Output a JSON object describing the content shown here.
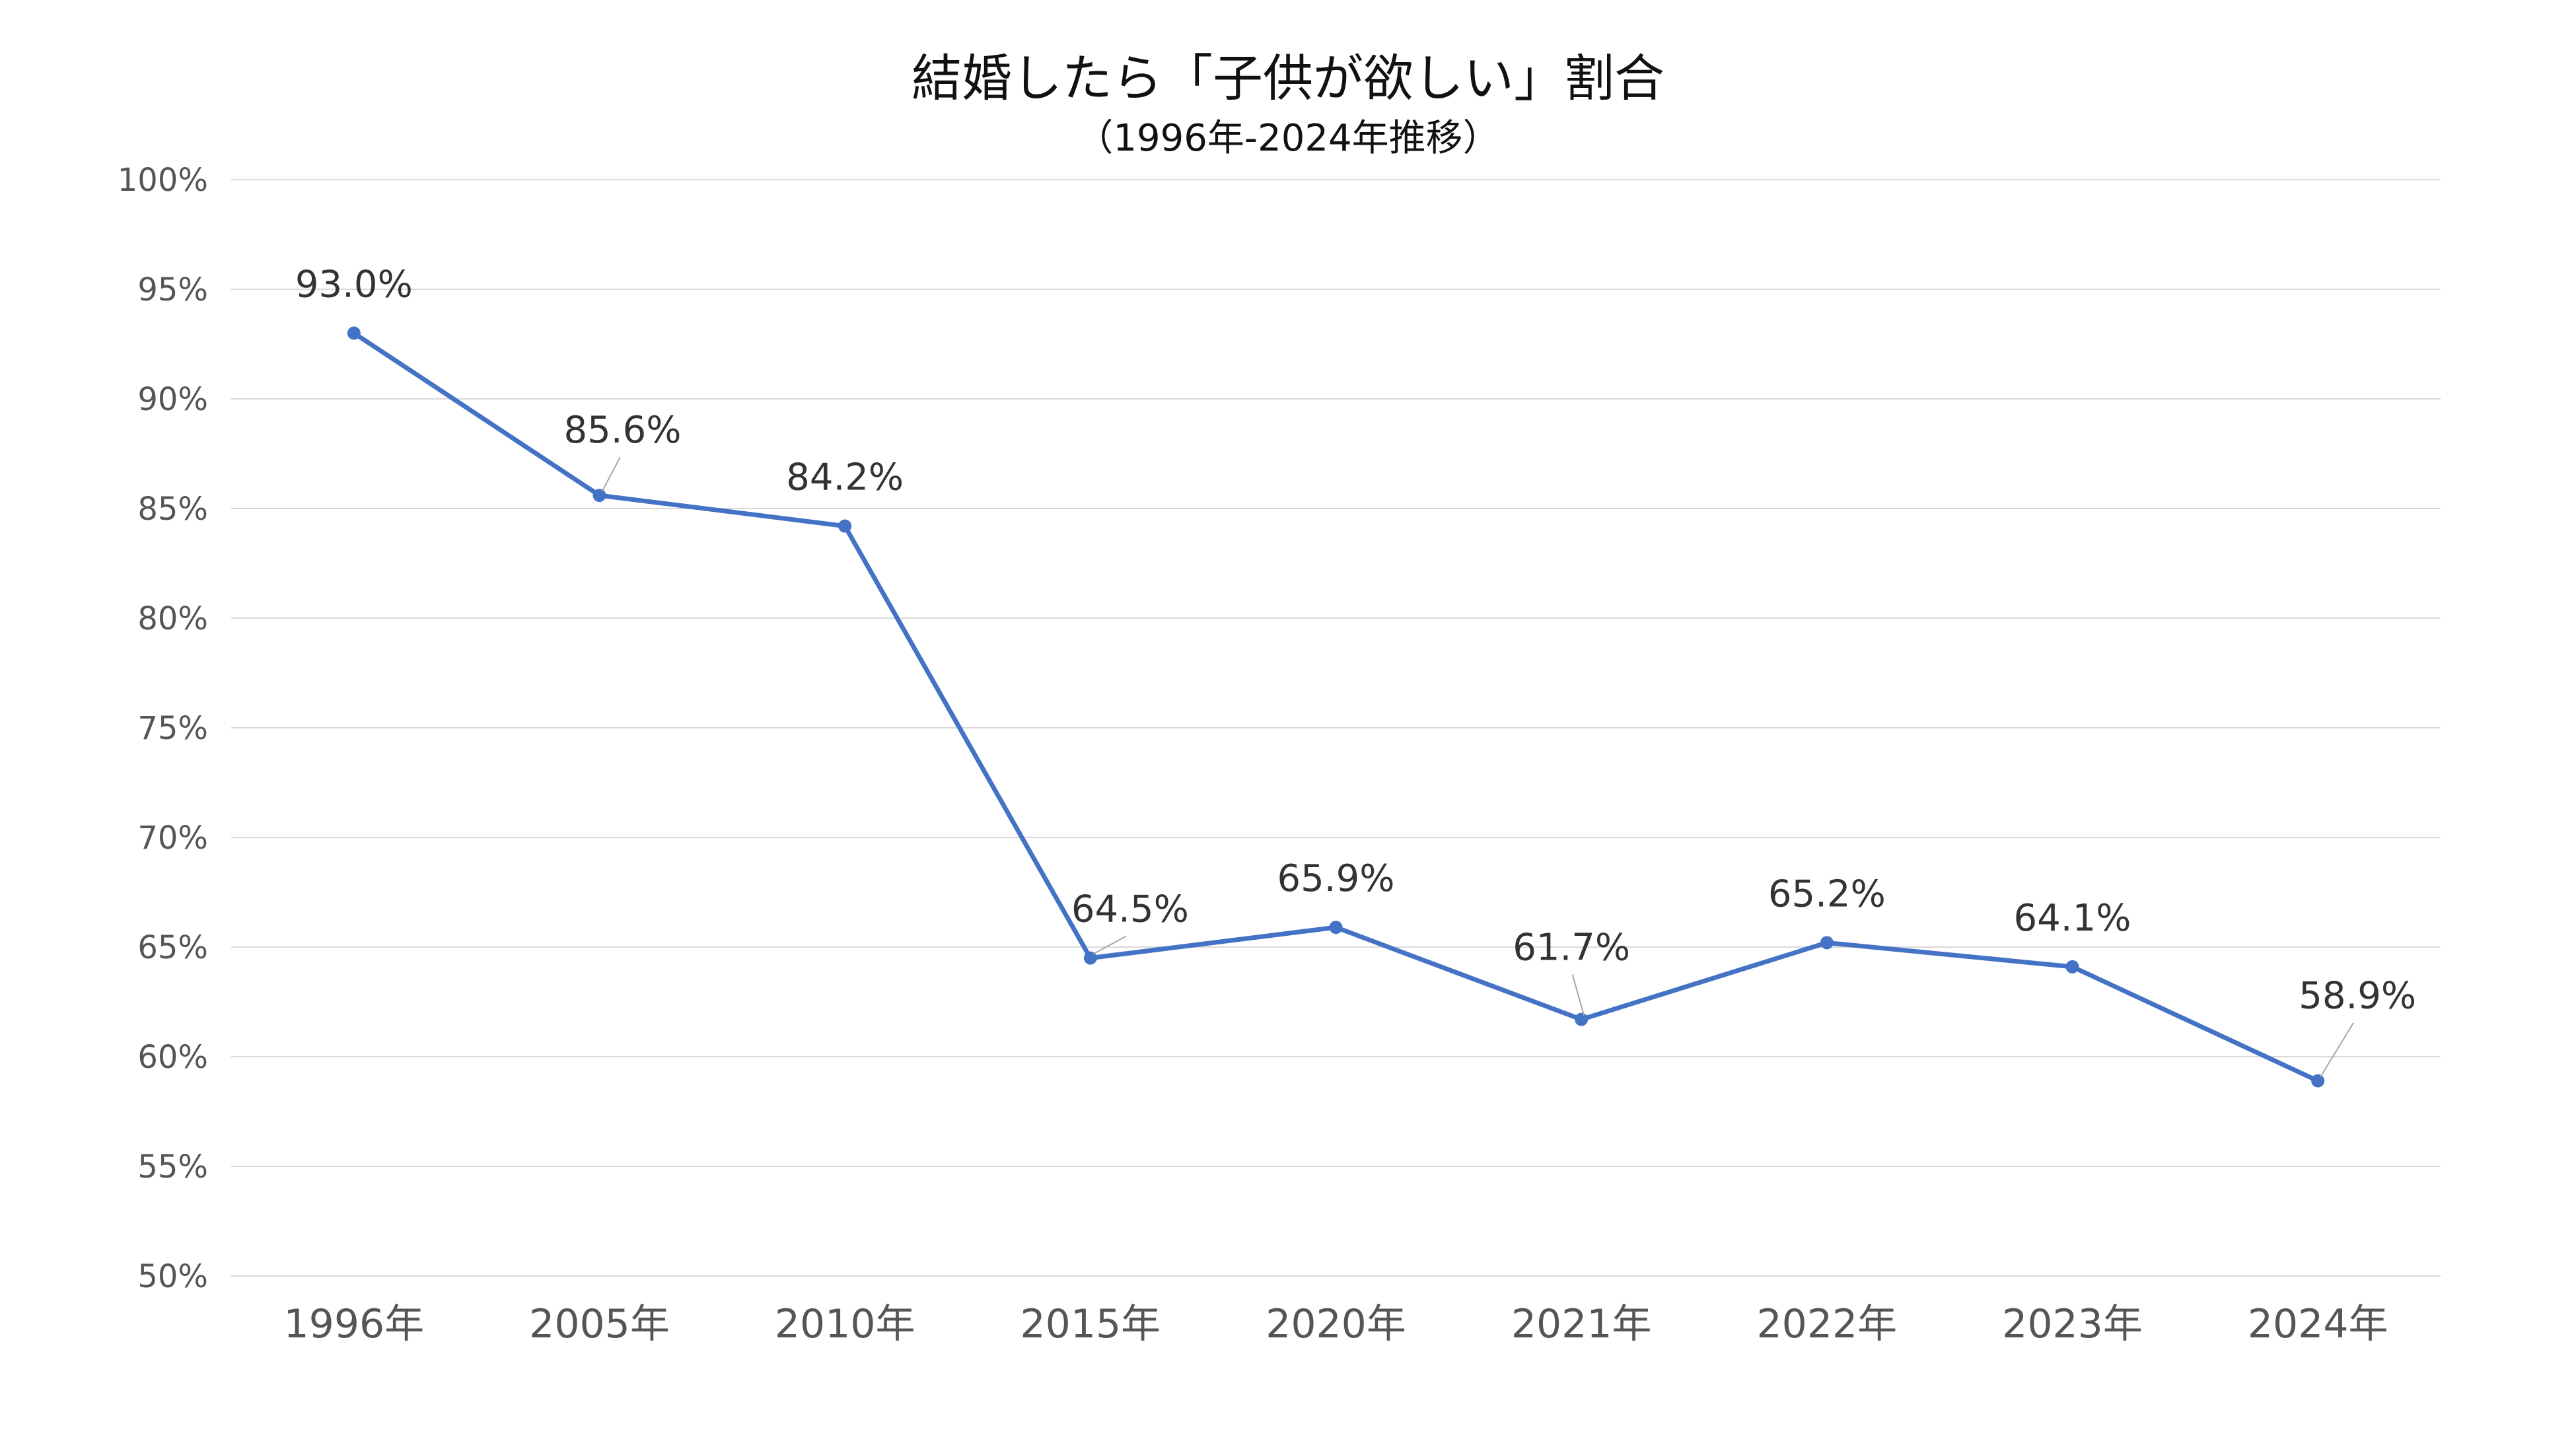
{
  "chart_data": {
    "type": "line",
    "title": "結婚したら「子供が欲しい」割合",
    "subtitle": "（1996年-2024年推移）",
    "categories": [
      "1996年",
      "2005年",
      "2010年",
      "2015年",
      "2020年",
      "2021年",
      "2022年",
      "2023年",
      "2024年"
    ],
    "series": [
      {
        "values": [
          93.0,
          85.6,
          84.2,
          64.5,
          65.9,
          61.7,
          65.2,
          64.1,
          58.9
        ],
        "data_labels": [
          "93.0%",
          "85.6%",
          "84.2%",
          "64.5%",
          "65.9%",
          "61.7%",
          "65.2%",
          "64.1%",
          "58.9%"
        ],
        "color": "#4472C4"
      }
    ],
    "ylim": [
      50,
      100
    ],
    "yticks": [
      "50%",
      "55%",
      "60%",
      "65%",
      "70%",
      "75%",
      "80%",
      "85%",
      "90%",
      "95%",
      "100%"
    ],
    "grid": true,
    "highlight": {
      "index": 8,
      "color": "#FF0000"
    }
  }
}
